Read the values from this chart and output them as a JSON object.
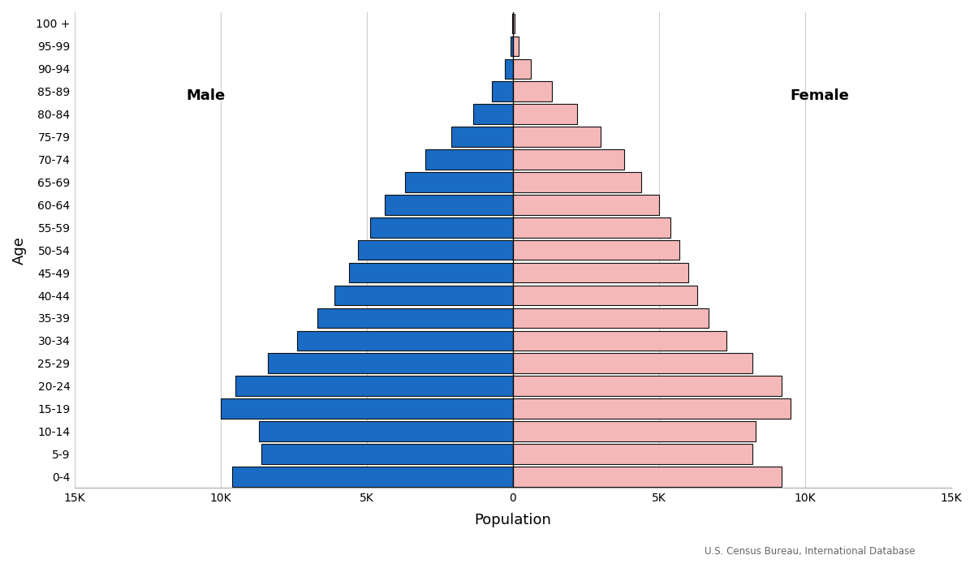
{
  "xlabel": "Population",
  "ylabel": "Age",
  "age_groups": [
    "0-4",
    "5-9",
    "10-14",
    "15-19",
    "20-24",
    "25-29",
    "30-34",
    "35-39",
    "40-44",
    "45-49",
    "50-54",
    "55-59",
    "60-64",
    "65-69",
    "70-74",
    "75-79",
    "80-84",
    "85-89",
    "90-94",
    "95-99",
    "100 +"
  ],
  "male": [
    9600,
    8600,
    8700,
    10000,
    9500,
    8400,
    7400,
    6700,
    6100,
    5600,
    5300,
    4900,
    4400,
    3700,
    3000,
    2100,
    1350,
    720,
    280,
    90,
    25
  ],
  "female": [
    9200,
    8200,
    8300,
    9500,
    9200,
    8200,
    7300,
    6700,
    6300,
    6000,
    5700,
    5400,
    5000,
    4400,
    3800,
    3000,
    2200,
    1350,
    620,
    210,
    60
  ],
  "male_color": "#1a6bc4",
  "female_color": "#f5b8b8",
  "bar_edge_color": "#111111",
  "bar_edge_width": 0.8,
  "xlim": 15000,
  "xtick_values": [
    -15000,
    -10000,
    -5000,
    0,
    5000,
    10000,
    15000
  ],
  "xtick_labels": [
    "15K",
    "10K",
    "5K",
    "0",
    "5K",
    "10K",
    "15K"
  ],
  "annotation": "U.S. Census Bureau, International Database",
  "male_label": "Male",
  "female_label": "Female",
  "background_color": "#ffffff",
  "grid_color": "#cccccc"
}
